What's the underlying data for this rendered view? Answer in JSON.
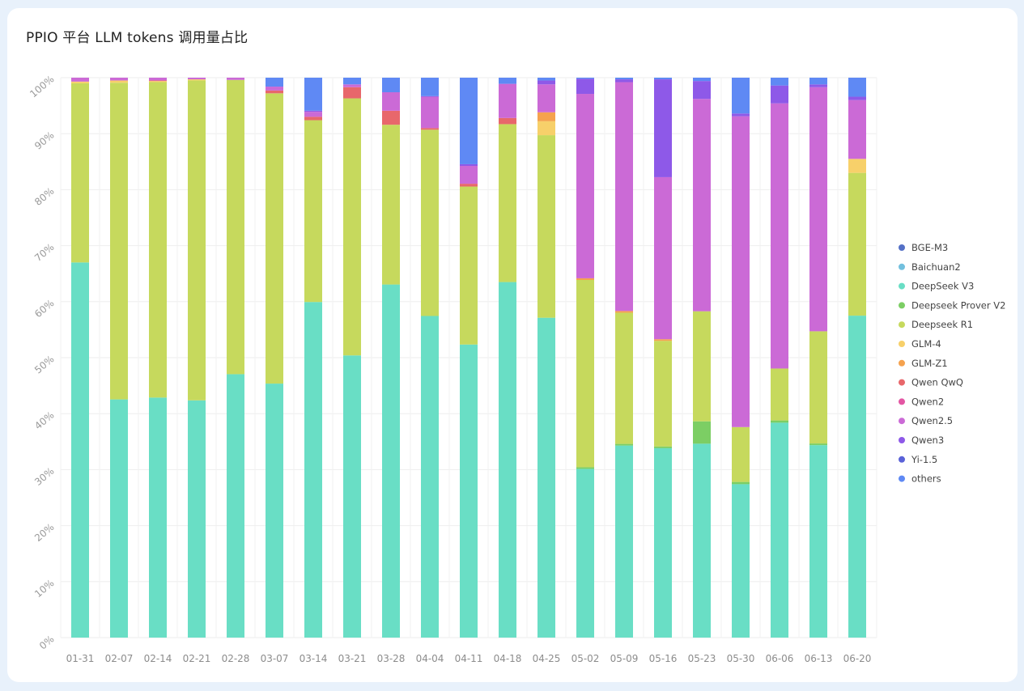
{
  "page": {
    "title": "PPIO 平台 LLM tokens 调用量占比"
  },
  "chart_data": {
    "type": "bar",
    "stacked": true,
    "normalized": true,
    "title": "PPIO 平台 LLM tokens 调用量占比",
    "xlabel": "",
    "ylabel": "",
    "ylim": [
      0,
      100
    ],
    "y_ticks": [
      "0%",
      "10%",
      "20%",
      "30%",
      "40%",
      "50%",
      "60%",
      "70%",
      "80%",
      "90%",
      "100%"
    ],
    "grid": true,
    "legend_position": "right",
    "categories": [
      "01-31",
      "02-07",
      "02-14",
      "02-21",
      "02-28",
      "03-07",
      "03-14",
      "03-21",
      "03-28",
      "04-04",
      "04-11",
      "04-18",
      "04-25",
      "05-02",
      "05-09",
      "05-16",
      "05-23",
      "05-30",
      "06-06",
      "06-13",
      "06-20"
    ],
    "series": [
      {
        "name": "BGE-M3",
        "color": "#5470c6",
        "values": [
          0,
          0,
          0,
          0,
          0,
          0,
          0,
          0,
          0,
          0,
          0,
          0,
          0,
          0,
          0,
          0,
          0,
          0,
          0,
          0,
          0
        ]
      },
      {
        "name": "Baichuan2",
        "color": "#73c0de",
        "values": [
          0,
          0,
          0,
          0,
          0,
          0,
          0,
          0,
          0,
          0,
          0,
          0,
          0,
          0,
          0,
          0,
          0,
          0,
          0,
          0,
          0
        ]
      },
      {
        "name": "DeepSeek V3",
        "color": "#69dec5",
        "values": [
          67,
          42.5,
          43,
          42.5,
          47,
          45.5,
          60,
          50.5,
          63,
          57.5,
          52.5,
          63.5,
          57.3,
          30.2,
          34.4,
          33.9,
          34.7,
          27.4,
          38.5,
          34.3,
          57.5
        ]
      },
      {
        "name": "Deepseek Prover V2",
        "color": "#7cce64",
        "values": [
          0,
          0,
          0,
          0,
          0,
          0,
          0,
          0,
          0,
          0,
          0,
          0,
          0,
          0.3,
          0.3,
          0.3,
          4,
          0.4,
          0.4,
          0.3,
          0
        ]
      },
      {
        "name": "Deepseek R1",
        "color": "#c6d95d",
        "values": [
          32,
          56.5,
          56.5,
          57.3,
          52.5,
          52,
          32.5,
          46,
          28.5,
          33.3,
          28.3,
          28.2,
          32.7,
          33.5,
          23.5,
          18.9,
          19.7,
          9.8,
          9.3,
          20,
          25.5
        ]
      },
      {
        "name": "GLM-4",
        "color": "#f7d06a",
        "values": [
          0.3,
          0.4,
          0.2,
          0.2,
          0,
          0,
          0,
          0,
          0,
          0,
          0,
          0,
          2.5,
          0,
          0,
          0,
          0,
          0,
          0,
          0,
          2.5
        ]
      },
      {
        "name": "GLM-Z1",
        "color": "#f5a24e",
        "values": [
          0,
          0,
          0,
          0,
          0,
          0,
          0,
          0,
          0,
          0,
          0,
          0,
          1.6,
          0.3,
          0.3,
          0.3,
          0,
          0,
          0,
          0,
          0
        ]
      },
      {
        "name": "Qwen QwQ",
        "color": "#e8676b",
        "values": [
          0,
          0,
          0.1,
          0,
          0,
          0.5,
          0.6,
          2,
          2.5,
          0.3,
          0.5,
          1.1,
          0,
          0,
          0,
          0,
          0,
          0,
          0,
          0,
          0
        ]
      },
      {
        "name": "Qwen2",
        "color": "#e356a3",
        "values": [
          0,
          0,
          0,
          0,
          0,
          0,
          0,
          0,
          0,
          0,
          0,
          0,
          0,
          0,
          0,
          0,
          0,
          0,
          0,
          0,
          0
        ]
      },
      {
        "name": "Qwen2.5",
        "color": "#cb6ad6",
        "values": [
          0.7,
          0.5,
          0.5,
          0.3,
          0.4,
          0.7,
          0.9,
          0.5,
          3.3,
          5.6,
          3.2,
          6.1,
          5,
          33,
          41,
          29,
          38,
          55.5,
          47.5,
          43.5,
          10.5
        ]
      },
      {
        "name": "Qwen3",
        "color": "#8e59e8",
        "values": [
          0,
          0,
          0,
          0,
          0,
          0,
          0.2,
          0,
          0,
          0.1,
          0.3,
          0,
          0.7,
          2.7,
          0.5,
          17.5,
          3.2,
          0.5,
          3.2,
          0.5,
          0.6
        ]
      },
      {
        "name": "Yi-1.5",
        "color": "#5a62d8",
        "values": [
          0,
          0,
          0,
          0,
          0,
          0,
          0,
          0,
          0,
          0,
          0,
          0,
          0,
          0,
          0,
          0,
          0,
          0,
          0,
          0,
          0
        ]
      },
      {
        "name": "others",
        "color": "#5f89f4",
        "values": [
          0,
          0,
          0,
          0,
          0,
          1.6,
          5.9,
          1.2,
          2.6,
          3.3,
          15.5,
          1.1,
          0.5,
          0.2,
          0.3,
          0.3,
          0.6,
          6.4,
          1.4,
          1.2,
          3.4
        ]
      }
    ]
  }
}
